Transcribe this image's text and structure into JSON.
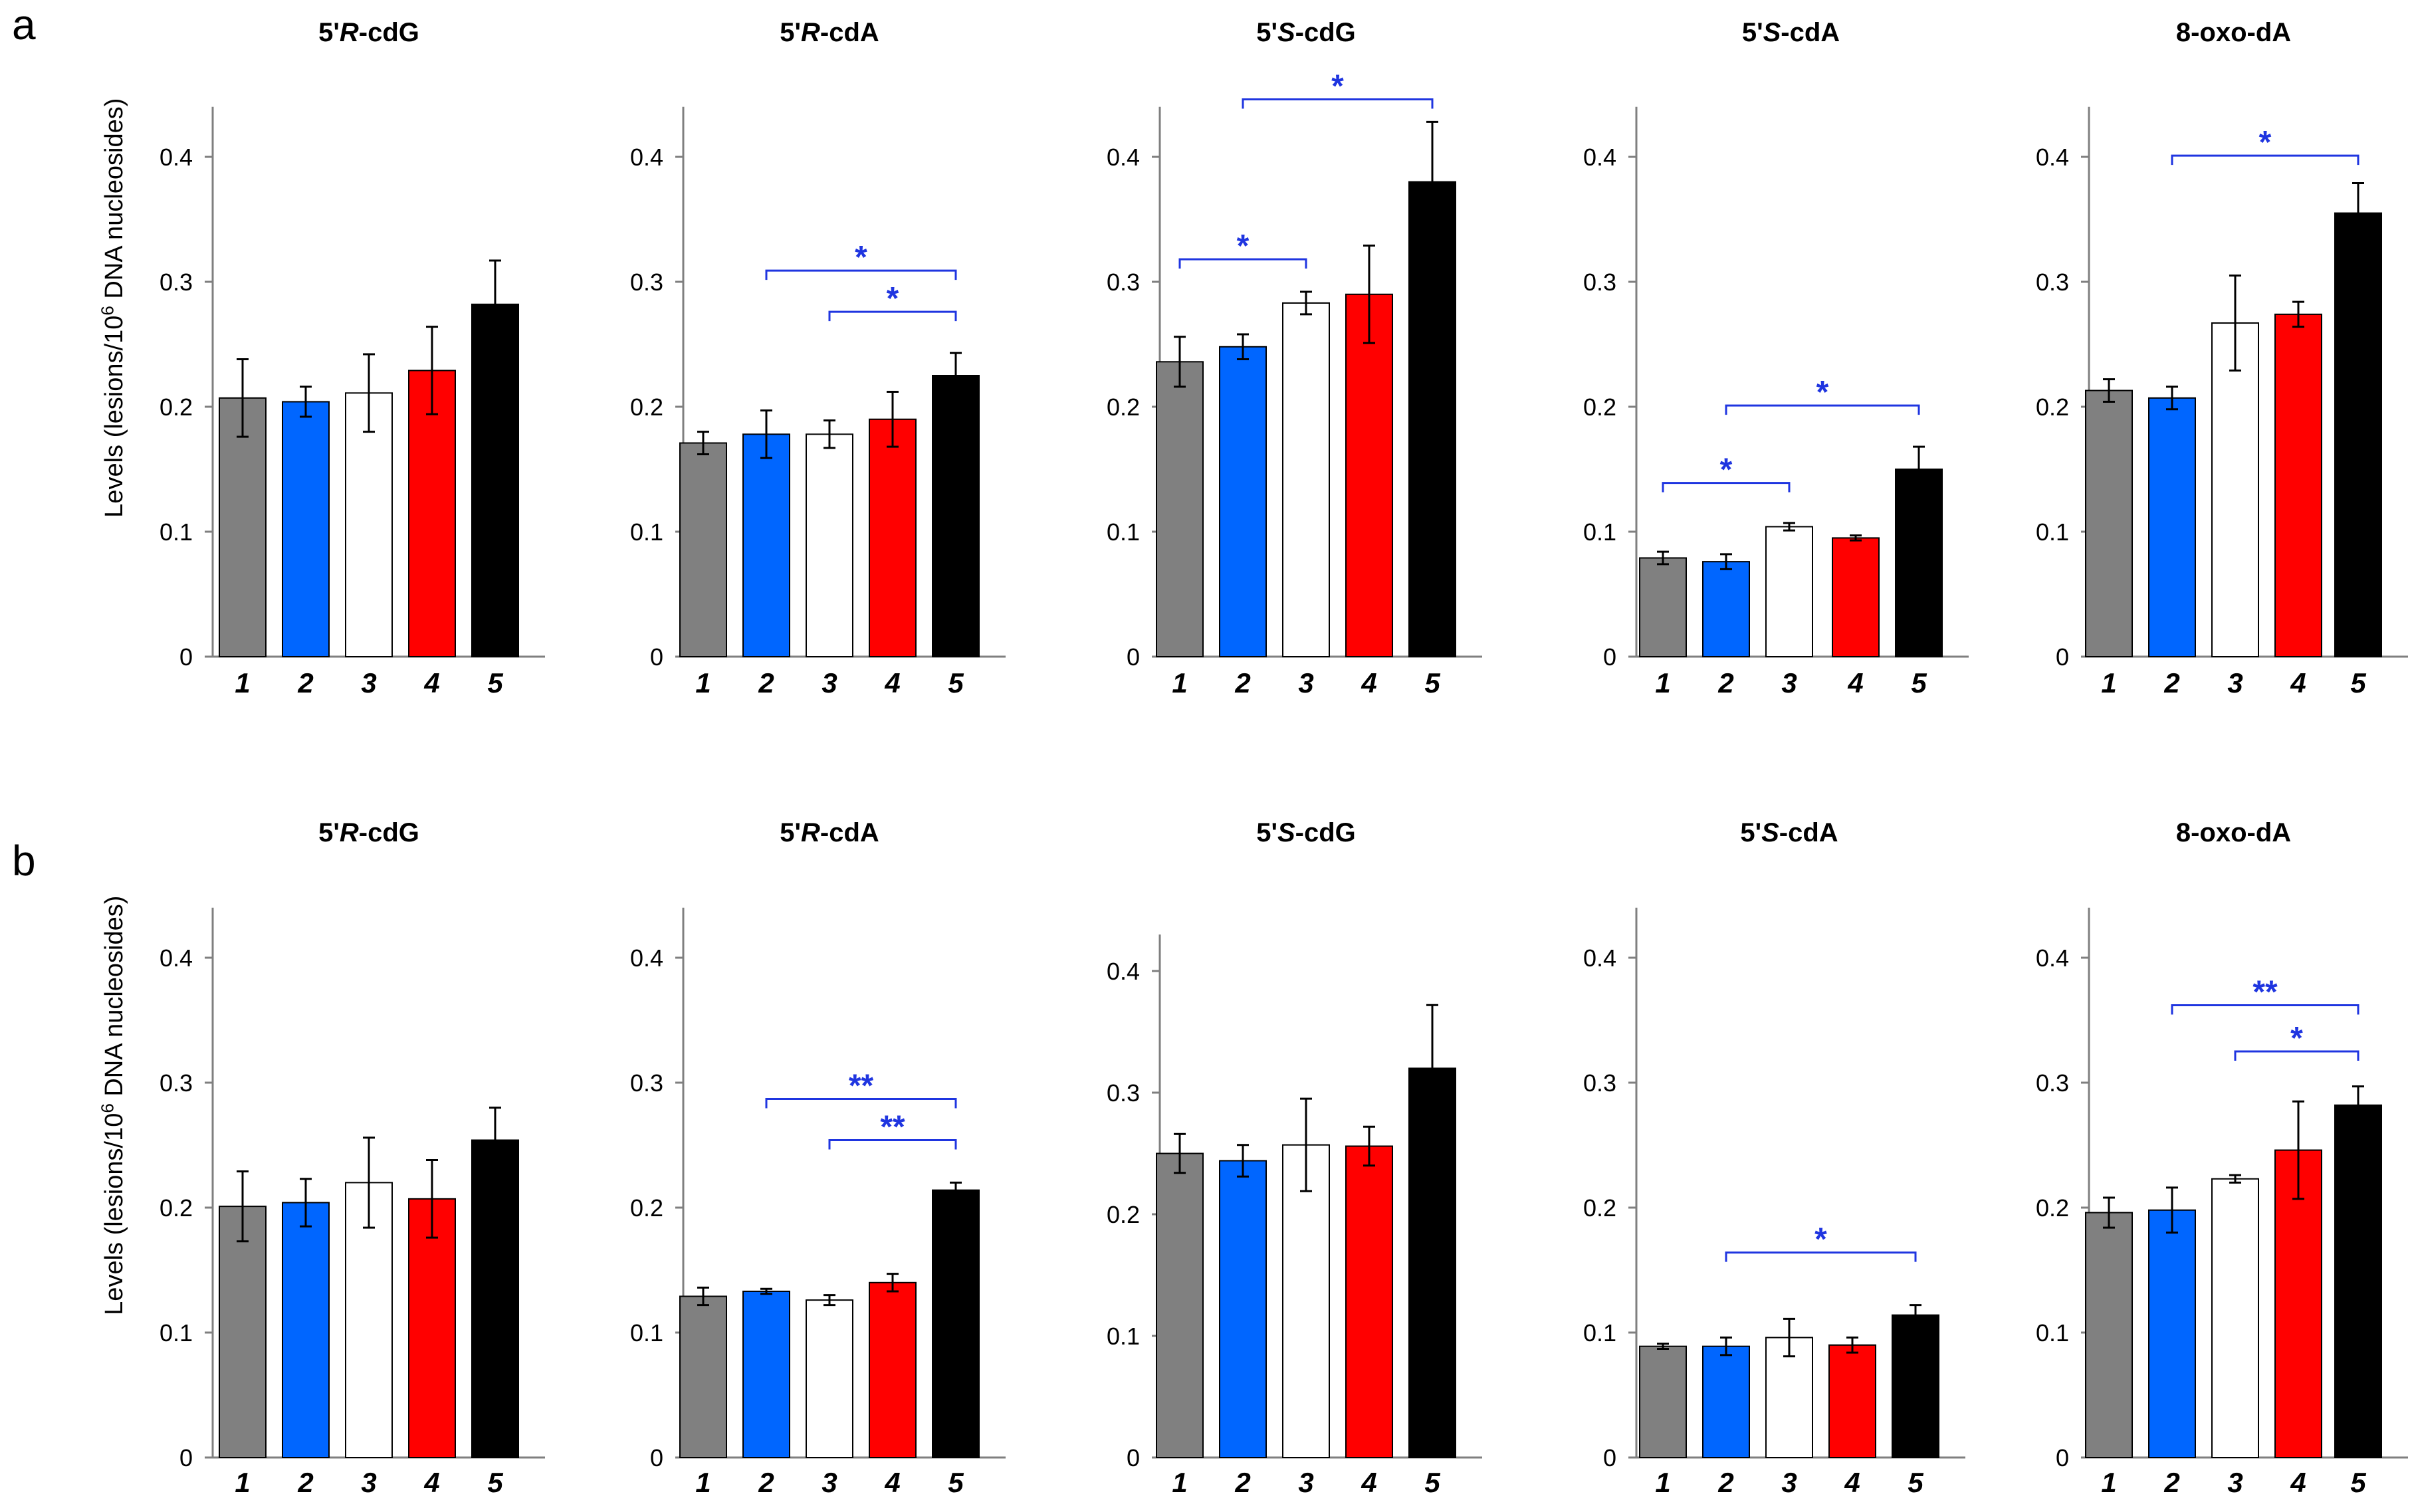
{
  "panels": [
    {
      "label": "a",
      "y_axis_label": "Levels (lesions/10^6 DNA nucleosides)"
    },
    {
      "label": "b",
      "y_axis_label": "Levels (lesions/10^6 DNA nucleosides)"
    }
  ],
  "y_axis_ticks": [
    "0",
    "0.1",
    "0.2",
    "0.3",
    "0.4"
  ],
  "colors": {
    "group1": "#808080",
    "group2": "#0066ff",
    "group3": "#ffffff",
    "group4": "#ff0000",
    "group5": "#000000",
    "significance": "#1f35e0"
  },
  "chart_data": [
    {
      "type": "bar",
      "panel": "a",
      "title": "5'R-cdG",
      "title_prefix": "5'",
      "title_italic": "R",
      "title_suffix": "-cdG",
      "categories": [
        "1",
        "2",
        "3",
        "4",
        "5"
      ],
      "values": [
        0.207,
        0.204,
        0.211,
        0.229,
        0.282
      ],
      "errors": [
        0.031,
        0.012,
        0.031,
        0.035,
        0.035
      ],
      "ylim": [
        0,
        0.44
      ],
      "significance": []
    },
    {
      "type": "bar",
      "panel": "a",
      "title": "5'R-cdA",
      "title_prefix": "5'",
      "title_italic": "R",
      "title_suffix": "-cdA",
      "categories": [
        "1",
        "2",
        "3",
        "4",
        "5"
      ],
      "values": [
        0.171,
        0.178,
        0.178,
        0.19,
        0.225
      ],
      "errors": [
        0.009,
        0.019,
        0.011,
        0.022,
        0.018
      ],
      "ylim": [
        0,
        0.44
      ],
      "significance": [
        {
          "from": "2",
          "to": "5",
          "y": 0.309,
          "label": "*"
        },
        {
          "from": "3",
          "to": "5",
          "y": 0.276,
          "label": "*"
        }
      ]
    },
    {
      "type": "bar",
      "panel": "a",
      "title": "5'S-cdG",
      "title_prefix": "5'",
      "title_italic": "S",
      "title_suffix": "-cdG",
      "categories": [
        "1",
        "2",
        "3",
        "4",
        "5"
      ],
      "values": [
        0.236,
        0.248,
        0.283,
        0.29,
        0.38
      ],
      "errors": [
        0.02,
        0.01,
        0.009,
        0.039,
        0.048
      ],
      "ylim": [
        0,
        0.44
      ],
      "significance": [
        {
          "from": "1",
          "to": "3",
          "y": 0.318,
          "label": "*"
        },
        {
          "from": "2",
          "to": "5",
          "y": 0.446,
          "label": "*"
        }
      ]
    },
    {
      "type": "bar",
      "panel": "a",
      "title": "5'S-cdA",
      "title_prefix": "5'",
      "title_italic": "S",
      "title_suffix": "-cdA",
      "categories": [
        "1",
        "2",
        "3",
        "4",
        "5"
      ],
      "values": [
        0.079,
        0.076,
        0.104,
        0.095,
        0.15
      ],
      "errors": [
        0.005,
        0.006,
        0.003,
        0.002,
        0.018
      ],
      "ylim": [
        0,
        0.44
      ],
      "significance": [
        {
          "from": "1",
          "to": "3",
          "y": 0.139,
          "label": "*"
        },
        {
          "from": "2",
          "to": "5",
          "y": 0.201,
          "label": "*"
        }
      ]
    },
    {
      "type": "bar",
      "panel": "a",
      "title": "8-oxo-dA",
      "title_prefix": "",
      "title_italic": "",
      "title_suffix": "8-oxo-dA",
      "categories": [
        "1",
        "2",
        "3",
        "4",
        "5"
      ],
      "values": [
        0.213,
        0.207,
        0.267,
        0.274,
        0.355
      ],
      "errors": [
        0.009,
        0.009,
        0.038,
        0.01,
        0.024
      ],
      "ylim": [
        0,
        0.44
      ],
      "significance": [
        {
          "from": "2",
          "to": "5",
          "y": 0.401,
          "label": "*"
        }
      ]
    },
    {
      "type": "bar",
      "panel": "b",
      "title": "5'R-cdG",
      "title_prefix": "5'",
      "title_italic": "R",
      "title_suffix": "-cdG",
      "categories": [
        "1",
        "2",
        "3",
        "4",
        "5"
      ],
      "values": [
        0.201,
        0.204,
        0.22,
        0.207,
        0.254
      ],
      "errors": [
        0.028,
        0.019,
        0.036,
        0.031,
        0.026
      ],
      "ylim": [
        0,
        0.44
      ],
      "significance": []
    },
    {
      "type": "bar",
      "panel": "b",
      "title": "5'R-cdA",
      "title_prefix": "5'",
      "title_italic": "R",
      "title_suffix": "-cdA",
      "categories": [
        "1",
        "2",
        "3",
        "4",
        "5"
      ],
      "values": [
        0.129,
        0.133,
        0.126,
        0.14,
        0.214
      ],
      "errors": [
        0.007,
        0.002,
        0.004,
        0.007,
        0.006
      ],
      "ylim": [
        0,
        0.44
      ],
      "significance": [
        {
          "from": "2",
          "to": "5",
          "y": 0.287,
          "label": "**"
        },
        {
          "from": "3",
          "to": "5",
          "y": 0.254,
          "label": "**"
        }
      ]
    },
    {
      "type": "bar",
      "panel": "b",
      "title": "5'S-cdG",
      "title_prefix": "5'",
      "title_italic": "S",
      "title_suffix": "-cdG",
      "categories": [
        "1",
        "2",
        "3",
        "4",
        "5"
      ],
      "values": [
        0.25,
        0.244,
        0.257,
        0.256,
        0.32
      ],
      "errors": [
        0.016,
        0.013,
        0.038,
        0.016,
        0.052
      ],
      "ylim": [
        0,
        0.43
      ],
      "significance": []
    },
    {
      "type": "bar",
      "panel": "b",
      "title": "5'S-cdA",
      "title_prefix": "5'",
      "title_italic": "S",
      "title_suffix": "-cdA",
      "categories": [
        "1",
        "2",
        "3",
        "4",
        "5"
      ],
      "values": [
        0.089,
        0.089,
        0.096,
        0.09,
        0.114
      ],
      "errors": [
        0.002,
        0.007,
        0.015,
        0.006,
        0.008
      ],
      "ylim": [
        0,
        0.44
      ],
      "significance": [
        {
          "from": "2",
          "to": "5",
          "y": 0.164,
          "label": "*"
        }
      ]
    },
    {
      "type": "bar",
      "panel": "b",
      "title": "8-oxo-dA",
      "title_prefix": "",
      "title_italic": "",
      "title_suffix": "8-oxo-dA",
      "categories": [
        "1",
        "2",
        "3",
        "4",
        "5"
      ],
      "values": [
        0.196,
        0.198,
        0.223,
        0.246,
        0.282
      ],
      "errors": [
        0.012,
        0.018,
        0.003,
        0.039,
        0.015
      ],
      "ylim": [
        0,
        0.44
      ],
      "significance": [
        {
          "from": "2",
          "to": "5",
          "y": 0.362,
          "label": "**"
        },
        {
          "from": "3",
          "to": "5",
          "y": 0.325,
          "label": "*"
        }
      ]
    }
  ]
}
